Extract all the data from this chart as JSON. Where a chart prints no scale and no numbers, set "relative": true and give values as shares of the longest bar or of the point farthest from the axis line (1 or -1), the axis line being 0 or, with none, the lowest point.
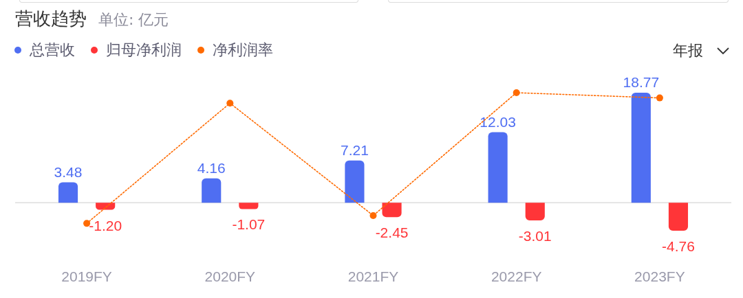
{
  "chart_data": [
    {
      "type": "bar",
      "title": "营收趋势",
      "subtitle": "单位: 亿元",
      "categories": [
        "2019FY",
        "2020FY",
        "2021FY",
        "2022FY",
        "2023FY"
      ],
      "series": [
        {
          "name": "总营收",
          "color": "#4f6ef2",
          "values": [
            3.48,
            4.16,
            7.21,
            12.03,
            18.77
          ],
          "value_labels": [
            "3.48",
            "4.16",
            "7.21",
            "12.03",
            "18.77"
          ]
        },
        {
          "name": "归母净利润",
          "color": "#ff3538",
          "values": [
            -1.2,
            -1.07,
            -2.45,
            -3.01,
            -4.76
          ],
          "value_labels": [
            "-1.20",
            "-1.07",
            "-2.45",
            "-3.01",
            "-4.76"
          ]
        }
      ],
      "tick_labels": "x",
      "legend": "top left",
      "annotations": [
        "年报"
      ]
    },
    {
      "type": "line",
      "categories": [
        null,
        null,
        null,
        null,
        null
      ],
      "series": [
        {
          "name": "净利润率",
          "color": "#ff6a00",
          "values": [
            0,
            0.92,
            0.06,
            1,
            0.96
          ]
        }
      ],
      "relative": true,
      "tick_labels": false,
      "legend": "top left",
      "marker": "circle",
      "line_style": "dotted"
    }
  ]
}
